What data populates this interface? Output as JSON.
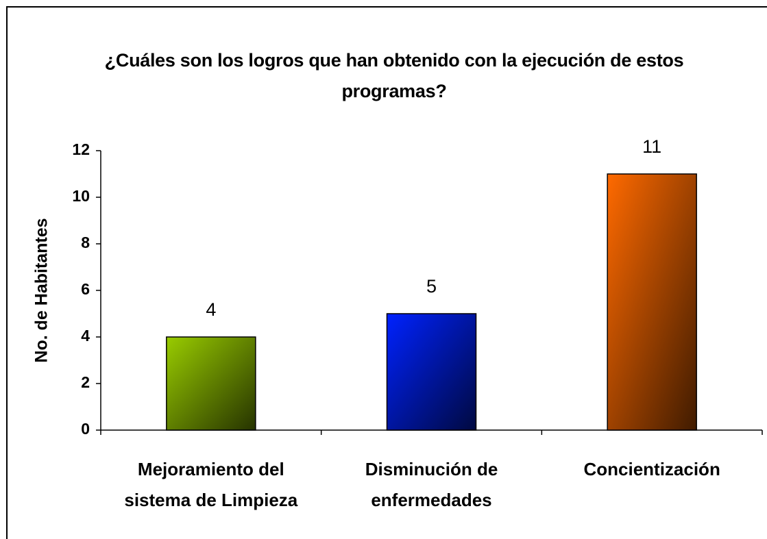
{
  "chart_data": {
    "type": "bar",
    "title": "¿Cuáles son los logros que han obtenido con la ejecución de estos programas?",
    "y_label": "No. de Habitantes",
    "categories": [
      "Mejoramiento del sistema de Limpieza",
      "Disminución de enfermedades",
      "Concientización"
    ],
    "values": [
      4,
      5,
      11
    ],
    "colors": [
      "#99cc00",
      "#0022ff",
      "#ff6a00"
    ],
    "ylim": [
      0,
      12
    ],
    "yticks": [
      0,
      2,
      4,
      6,
      8,
      10,
      12
    ]
  }
}
